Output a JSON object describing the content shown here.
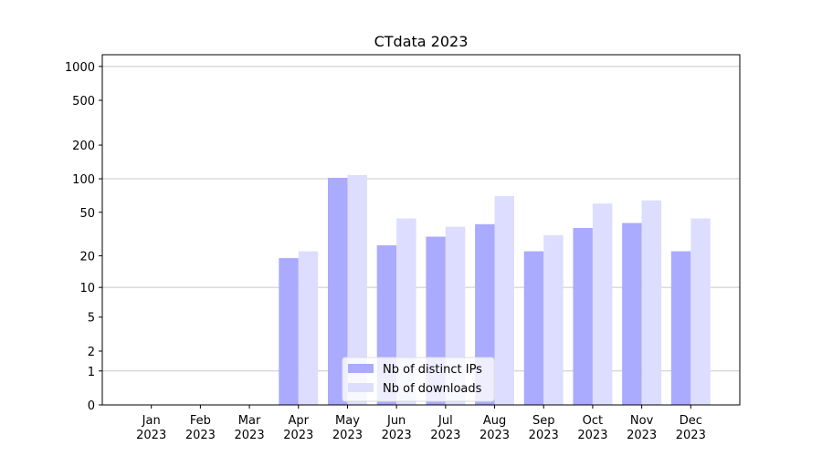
{
  "chart_data": {
    "type": "bar",
    "title": "CTdata 2023",
    "yscale": "log1p",
    "categories": [
      "Jan\n2023",
      "Feb\n2023",
      "Mar\n2023",
      "Apr\n2023",
      "May\n2023",
      "Jun\n2023",
      "Jul\n2023",
      "Aug\n2023",
      "Sep\n2023",
      "Oct\n2023",
      "Nov\n2023",
      "Dec\n2023"
    ],
    "series": [
      {
        "name": "Nb of distinct IPs",
        "color": "#aaaaff",
        "values": [
          0,
          0,
          0,
          19,
          102,
          25,
          30,
          39,
          22,
          36,
          40,
          22
        ]
      },
      {
        "name": "Nb of downloads",
        "color": "#ddddff",
        "values": [
          0,
          0,
          0,
          22,
          108,
          44,
          37,
          70,
          31,
          60,
          64,
          44
        ]
      }
    ],
    "ylim": [
      0,
      1270
    ],
    "yticks": [
      0,
      1,
      2,
      5,
      10,
      20,
      50,
      100,
      200,
      500,
      1000
    ],
    "grid_lines": [
      1,
      10,
      100,
      1000
    ],
    "grid": true,
    "legend": "lower center"
  }
}
